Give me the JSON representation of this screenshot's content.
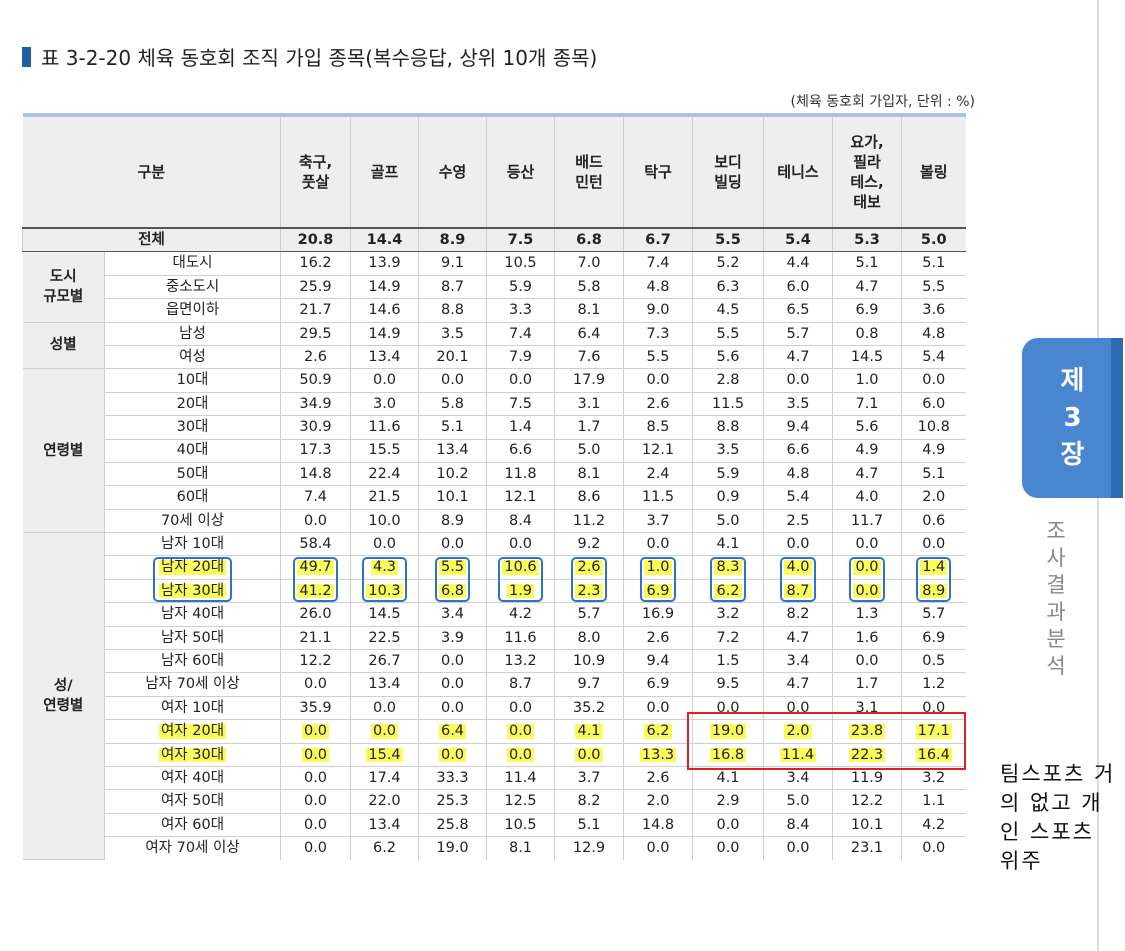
{
  "title": "표 3-2-20 체육 동호회 조직 가입 종목(복수응답, 상위 10개 종목)",
  "unit_note": "(체육 동호회 가입자, 단위 : %)",
  "header": {
    "category": "구분",
    "columns": [
      "축구,\n풋살",
      "골프",
      "수영",
      "등산",
      "배드\n민턴",
      "탁구",
      "보디\n빌딩",
      "테니스",
      "요가,\n필라\n테스,\n태보",
      "볼링"
    ]
  },
  "total": {
    "label": "전체",
    "values": [
      "20.8",
      "14.4",
      "8.9",
      "7.5",
      "6.8",
      "6.7",
      "5.5",
      "5.4",
      "5.3",
      "5.0"
    ]
  },
  "groups": [
    {
      "name": "도시\n규모별",
      "rows": [
        {
          "label": "대도시",
          "values": [
            "16.2",
            "13.9",
            "9.1",
            "10.5",
            "7.0",
            "7.4",
            "5.2",
            "4.4",
            "5.1",
            "5.1"
          ]
        },
        {
          "label": "중소도시",
          "values": [
            "25.9",
            "14.9",
            "8.7",
            "5.9",
            "5.8",
            "4.8",
            "6.3",
            "6.0",
            "4.7",
            "5.5"
          ]
        },
        {
          "label": "읍면이하",
          "values": [
            "21.7",
            "14.6",
            "8.8",
            "3.3",
            "8.1",
            "9.0",
            "4.5",
            "6.5",
            "6.9",
            "3.6"
          ]
        }
      ]
    },
    {
      "name": "성별",
      "rows": [
        {
          "label": "남성",
          "values": [
            "29.5",
            "14.9",
            "3.5",
            "7.4",
            "6.4",
            "7.3",
            "5.5",
            "5.7",
            "0.8",
            "4.8"
          ]
        },
        {
          "label": "여성",
          "values": [
            "2.6",
            "13.4",
            "20.1",
            "7.9",
            "7.6",
            "5.5",
            "5.6",
            "4.7",
            "14.5",
            "5.4"
          ]
        }
      ]
    },
    {
      "name": "연령별",
      "rows": [
        {
          "label": "10대",
          "values": [
            "50.9",
            "0.0",
            "0.0",
            "0.0",
            "17.9",
            "0.0",
            "2.8",
            "0.0",
            "1.0",
            "0.0"
          ]
        },
        {
          "label": "20대",
          "values": [
            "34.9",
            "3.0",
            "5.8",
            "7.5",
            "3.1",
            "2.6",
            "11.5",
            "3.5",
            "7.1",
            "6.0"
          ]
        },
        {
          "label": "30대",
          "values": [
            "30.9",
            "11.6",
            "5.1",
            "1.4",
            "1.7",
            "8.5",
            "8.8",
            "9.4",
            "5.6",
            "10.8"
          ]
        },
        {
          "label": "40대",
          "values": [
            "17.3",
            "15.5",
            "13.4",
            "6.6",
            "5.0",
            "12.1",
            "3.5",
            "6.6",
            "4.9",
            "4.9"
          ]
        },
        {
          "label": "50대",
          "values": [
            "14.8",
            "22.4",
            "10.2",
            "11.8",
            "8.1",
            "2.4",
            "5.9",
            "4.8",
            "4.7",
            "5.1"
          ]
        },
        {
          "label": "60대",
          "values": [
            "7.4",
            "21.5",
            "10.1",
            "12.1",
            "8.6",
            "11.5",
            "0.9",
            "5.4",
            "4.0",
            "2.0"
          ]
        },
        {
          "label": "70세 이상",
          "values": [
            "0.0",
            "10.0",
            "8.9",
            "8.4",
            "11.2",
            "3.7",
            "5.0",
            "2.5",
            "11.7",
            "0.6"
          ]
        }
      ]
    },
    {
      "name": "성/\n연령별",
      "rows": [
        {
          "label": "남자 10대",
          "values": [
            "58.4",
            "0.0",
            "0.0",
            "0.0",
            "9.2",
            "0.0",
            "4.1",
            "0.0",
            "0.0",
            "0.0"
          ]
        },
        {
          "label": "남자 20대",
          "highlight": true,
          "values": [
            "49.7",
            "4.3",
            "5.5",
            "10.6",
            "2.6",
            "1.0",
            "8.3",
            "4.0",
            "0.0",
            "1.4"
          ]
        },
        {
          "label": "남자 30대",
          "highlight": true,
          "values": [
            "41.2",
            "10.3",
            "6.8",
            "1.9",
            "2.3",
            "6.9",
            "6.2",
            "8.7",
            "0.0",
            "8.9"
          ]
        },
        {
          "label": "남자 40대",
          "values": [
            "26.0",
            "14.5",
            "3.4",
            "4.2",
            "5.7",
            "16.9",
            "3.2",
            "8.2",
            "1.3",
            "5.7"
          ]
        },
        {
          "label": "남자 50대",
          "values": [
            "21.1",
            "22.5",
            "3.9",
            "11.6",
            "8.0",
            "2.6",
            "7.2",
            "4.7",
            "1.6",
            "6.9"
          ]
        },
        {
          "label": "남자 60대",
          "values": [
            "12.2",
            "26.7",
            "0.0",
            "13.2",
            "10.9",
            "9.4",
            "1.5",
            "3.4",
            "0.0",
            "0.5"
          ]
        },
        {
          "label": "남자 70세 이상",
          "values": [
            "0.0",
            "13.4",
            "0.0",
            "8.7",
            "9.7",
            "6.9",
            "9.5",
            "4.7",
            "1.7",
            "1.2"
          ]
        },
        {
          "label": "여자 10대",
          "values": [
            "35.9",
            "0.0",
            "0.0",
            "0.0",
            "35.2",
            "0.0",
            "0.0",
            "0.0",
            "3.1",
            "0.0"
          ]
        },
        {
          "label": "여자 20대",
          "highlight": true,
          "values": [
            "0.0",
            "0.0",
            "6.4",
            "0.0",
            "4.1",
            "6.2",
            "19.0",
            "2.0",
            "23.8",
            "17.1"
          ]
        },
        {
          "label": "여자 30대",
          "highlight": true,
          "values": [
            "0.0",
            "15.4",
            "0.0",
            "0.0",
            "0.0",
            "13.3",
            "16.8",
            "11.4",
            "22.3",
            "16.4"
          ]
        },
        {
          "label": "여자 40대",
          "values": [
            "0.0",
            "17.4",
            "33.3",
            "11.4",
            "3.7",
            "2.6",
            "4.1",
            "3.4",
            "11.9",
            "3.2"
          ]
        },
        {
          "label": "여자 50대",
          "values": [
            "0.0",
            "22.0",
            "25.3",
            "12.5",
            "8.2",
            "2.0",
            "2.9",
            "5.0",
            "12.2",
            "1.1"
          ]
        },
        {
          "label": "여자 60대",
          "values": [
            "0.0",
            "13.4",
            "25.8",
            "10.5",
            "5.1",
            "14.8",
            "0.0",
            "8.4",
            "10.1",
            "4.2"
          ]
        },
        {
          "label": "여자 70세 이상",
          "values": [
            "0.0",
            "6.2",
            "19.0",
            "8.1",
            "12.9",
            "0.0",
            "0.0",
            "0.0",
            "23.1",
            "0.0"
          ]
        }
      ]
    }
  ],
  "annotation": {
    "note": "팀스포츠 거의 없고 개인 스포츠 위주",
    "highlight_color": "#fbfb5c",
    "box_color": "#2f74c0",
    "red_box_color": "#e02020"
  },
  "side_tab": {
    "lines": [
      "제",
      "3",
      "장"
    ],
    "label": [
      "조",
      "사",
      "결",
      "과",
      "분",
      "석"
    ],
    "color": "#4a86d0"
  }
}
